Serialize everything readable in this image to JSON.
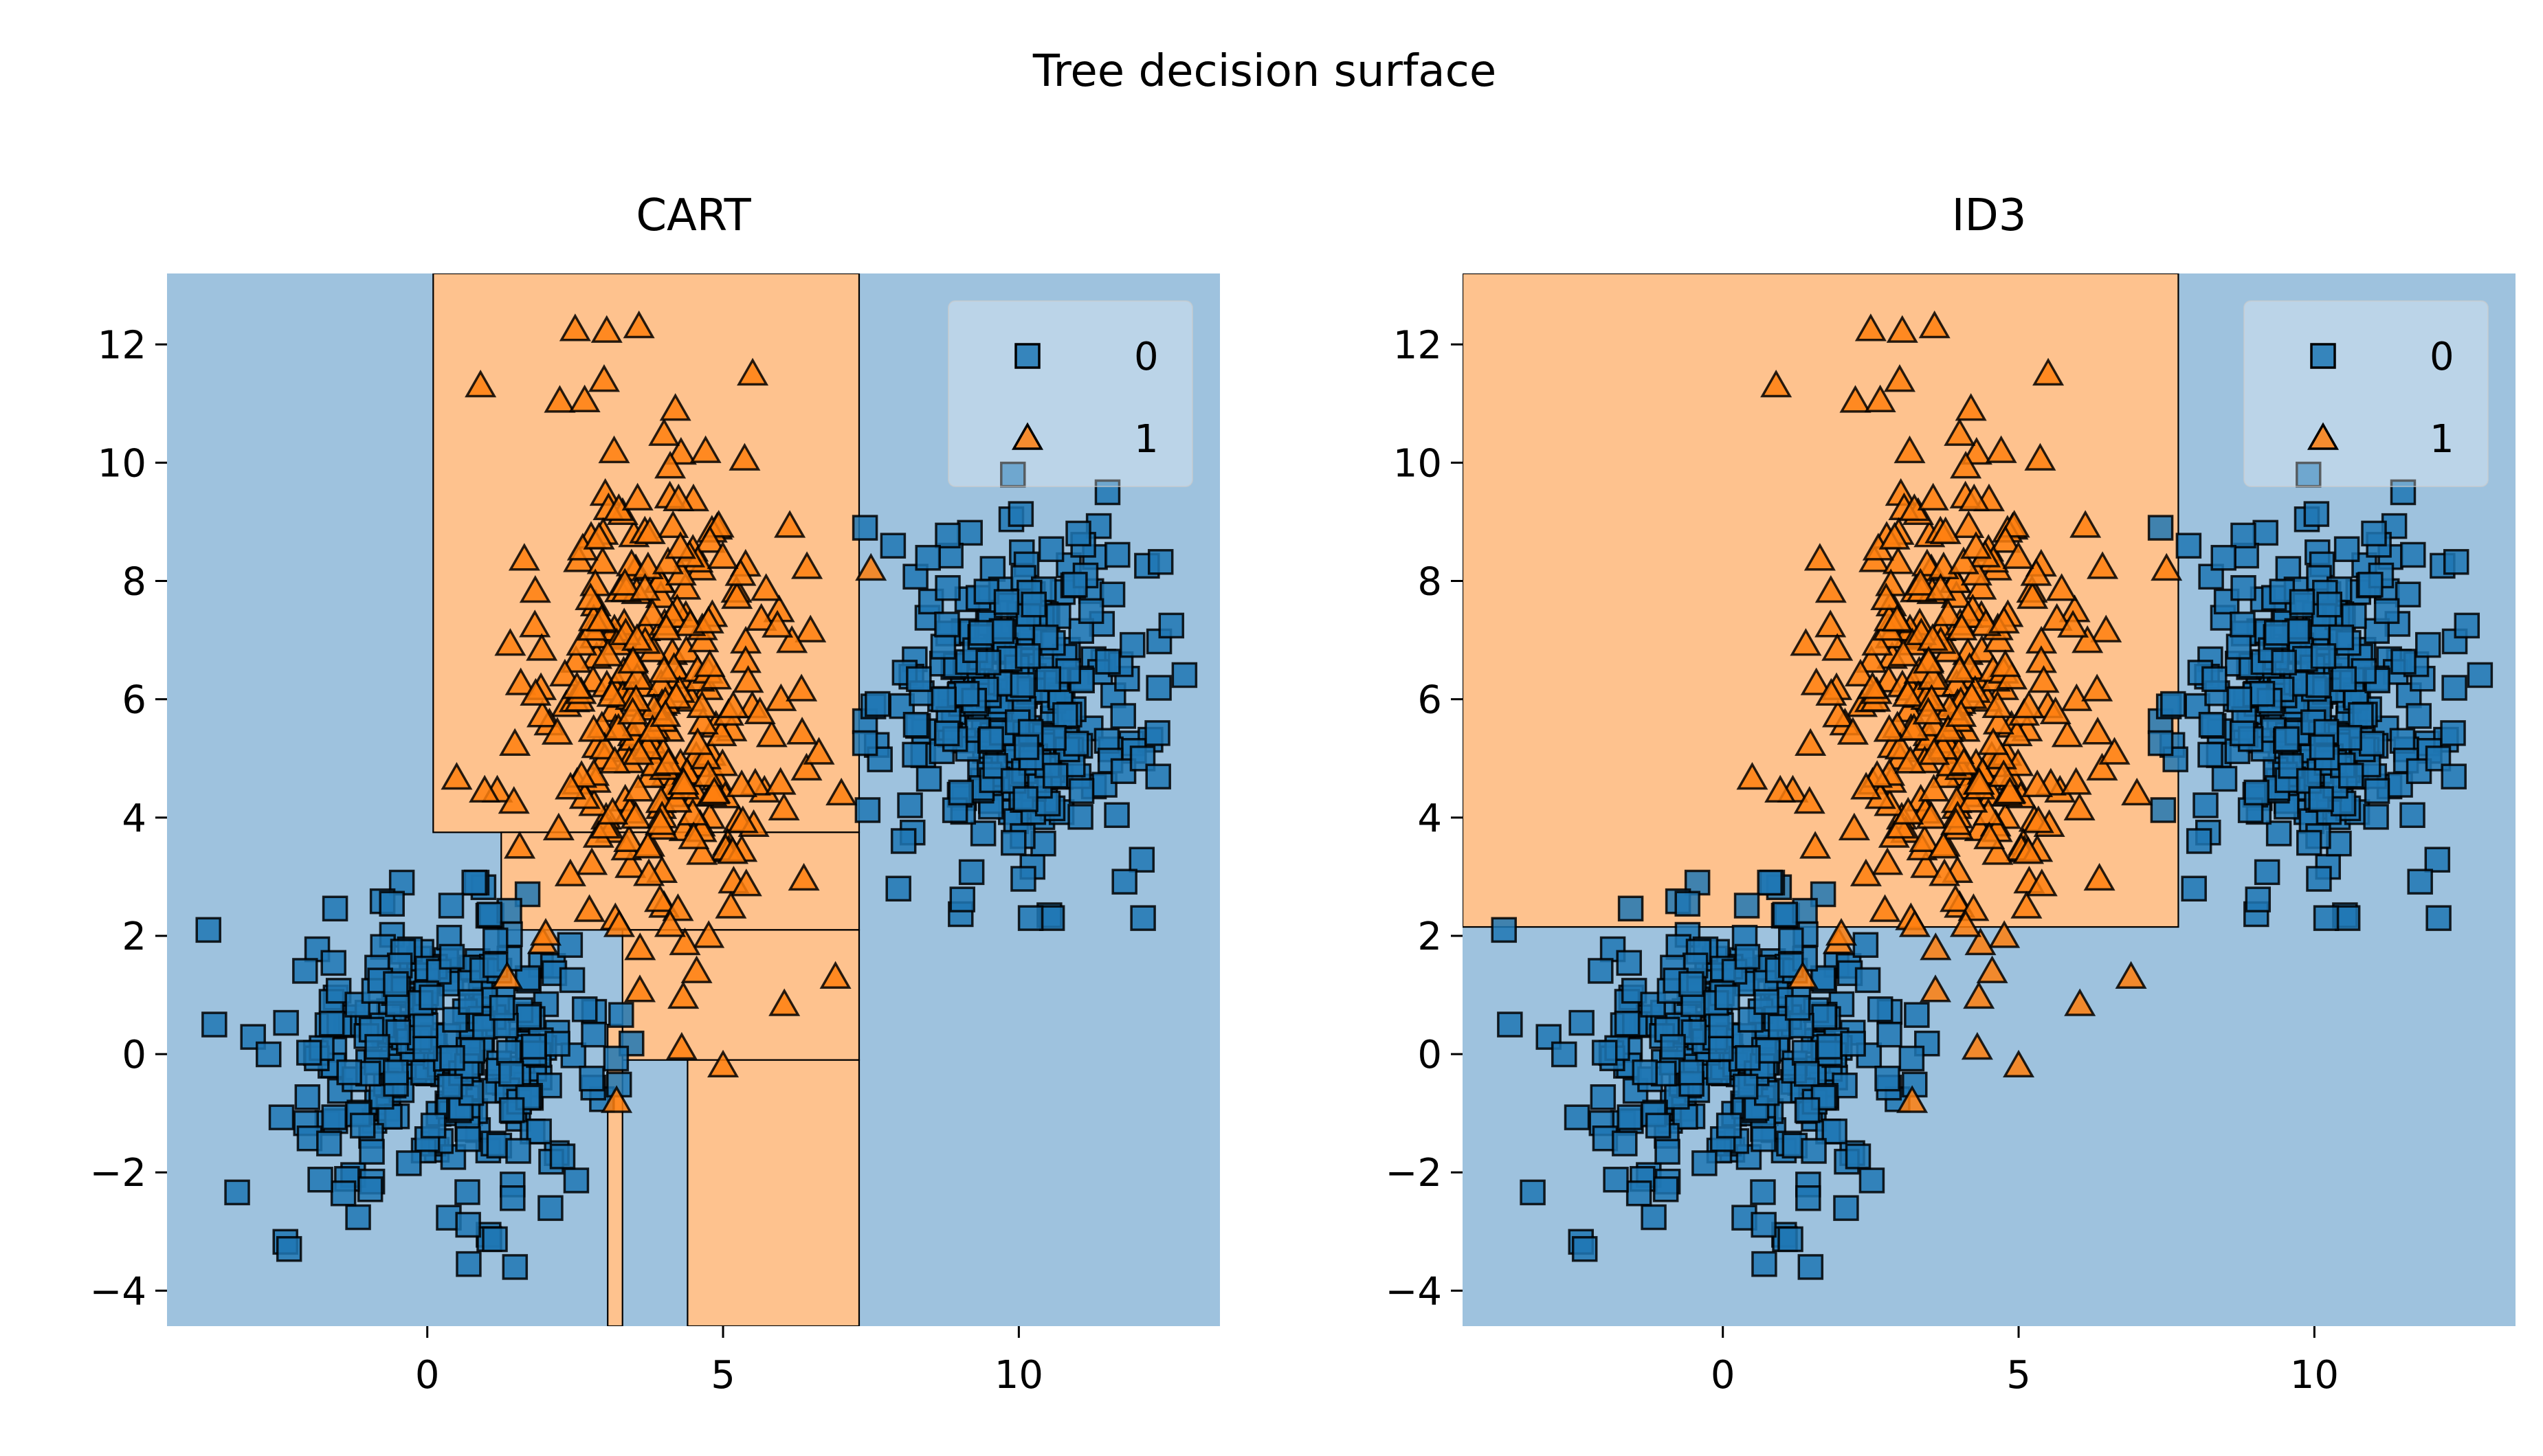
{
  "figure": {
    "suptitle": "Tree decision surface"
  },
  "chart_data": [
    {
      "type": "scatter",
      "title": "CART",
      "xlabel": "",
      "ylabel": "",
      "xlim": [
        -4.4,
        13.4
      ],
      "ylim": [
        -4.6,
        13.2
      ],
      "xticks": [
        0,
        5,
        10
      ],
      "yticks": [
        -4,
        -2,
        0,
        2,
        4,
        6,
        8,
        10,
        12
      ],
      "grid": false,
      "legend": {
        "placement": "top-right",
        "entries": [
          "0",
          "1"
        ]
      },
      "decision_regions": [
        {
          "class": "1",
          "x0": 0.1,
          "x1": 7.3,
          "y0": 3.75,
          "y1": 13.2
        },
        {
          "class": "1",
          "x0": 1.25,
          "x1": 7.3,
          "y0": 2.1,
          "y1": 3.75
        },
        {
          "class": "1",
          "x0": 3.3,
          "x1": 7.3,
          "y0": -0.1,
          "y1": 2.1
        },
        {
          "class": "1",
          "x0": 4.4,
          "x1": 7.3,
          "y0": -4.6,
          "y1": -0.1
        },
        {
          "class": "1",
          "x0": 3.05,
          "x1": 3.3,
          "y0": -4.6,
          "y1": 0.5
        }
      ],
      "series": [
        {
          "name": "0",
          "marker": "square",
          "color": "#1f77b4",
          "region_color": "#9ec2de",
          "clusters": [
            {
              "n": 300,
              "cx": 0.3,
              "cy": 0.0,
              "sx": 1.35,
              "sy": 1.15,
              "xmin": -3.8,
              "xmax": 3.6,
              "ymin": -3.6,
              "ymax": 2.9
            },
            {
              "n": 300,
              "cx": 10.0,
              "cy": 6.0,
              "sx": 1.1,
              "sy": 1.4,
              "xmin": 7.4,
              "xmax": 12.8,
              "ymin": 2.3,
              "ymax": 9.8
            }
          ],
          "extra": [
            {
              "x": -3.7,
              "y": 2.1
            },
            {
              "x": -3.6,
              "y": 0.5
            },
            {
              "x": 0.7,
              "y": -3.55
            },
            {
              "x": 10.2,
              "y": 2.3
            },
            {
              "x": 12.1,
              "y": 2.3
            },
            {
              "x": 9.9,
              "y": 9.8
            },
            {
              "x": 11.5,
              "y": 9.5
            },
            {
              "x": 7.4,
              "y": 8.9
            }
          ]
        },
        {
          "name": "1",
          "marker": "triangle",
          "color": "#ff7f0e",
          "region_color": "#fec28e",
          "clusters": [
            {
              "n": 300,
              "cx": 3.9,
              "cy": 6.0,
              "sx": 1.2,
              "sy": 2.2,
              "xmin": 0.3,
              "xmax": 7.0,
              "ymin": -0.9,
              "ymax": 12.3
            }
          ],
          "extra": [
            {
              "x": 2.5,
              "y": 12.25
            },
            {
              "x": 0.9,
              "y": 11.3
            },
            {
              "x": 5.5,
              "y": 11.5
            },
            {
              "x": 5.0,
              "y": -0.2
            },
            {
              "x": 7.0,
              "y": 4.4
            },
            {
              "x": 6.9,
              "y": 1.3
            },
            {
              "x": 7.5,
              "y": 8.2
            },
            {
              "x": 3.2,
              "y": -0.8
            }
          ]
        }
      ]
    },
    {
      "type": "scatter",
      "title": "ID3",
      "xlabel": "",
      "ylabel": "",
      "xlim": [
        -4.4,
        13.4
      ],
      "ylim": [
        -4.6,
        13.2
      ],
      "xticks": [
        0,
        5,
        10
      ],
      "yticks": [
        -4,
        -2,
        0,
        2,
        4,
        6,
        8,
        10,
        12
      ],
      "grid": false,
      "legend": {
        "placement": "top-right",
        "entries": [
          "0",
          "1"
        ]
      },
      "decision_regions": [
        {
          "class": "1",
          "x0": -4.4,
          "x1": 7.7,
          "y0": 2.15,
          "y1": 13.2
        }
      ],
      "series": [
        {
          "name": "0",
          "marker": "square",
          "color": "#1f77b4",
          "region_color": "#9ec2de",
          "clusters": [
            {
              "n": 300,
              "cx": 0.3,
              "cy": 0.0,
              "sx": 1.35,
              "sy": 1.15,
              "xmin": -3.8,
              "xmax": 3.6,
              "ymin": -3.6,
              "ymax": 2.9
            },
            {
              "n": 300,
              "cx": 10.0,
              "cy": 6.0,
              "sx": 1.1,
              "sy": 1.4,
              "xmin": 7.4,
              "xmax": 12.8,
              "ymin": 2.3,
              "ymax": 9.8
            }
          ],
          "extra": [
            {
              "x": -3.7,
              "y": 2.1
            },
            {
              "x": -3.6,
              "y": 0.5
            },
            {
              "x": 0.7,
              "y": -3.55
            },
            {
              "x": 10.2,
              "y": 2.3
            },
            {
              "x": 12.1,
              "y": 2.3
            },
            {
              "x": 9.9,
              "y": 9.8
            },
            {
              "x": 11.5,
              "y": 9.5
            },
            {
              "x": 7.4,
              "y": 8.9
            }
          ]
        },
        {
          "name": "1",
          "marker": "triangle",
          "color": "#ff7f0e",
          "region_color": "#fec28e",
          "clusters": [
            {
              "n": 300,
              "cx": 3.9,
              "cy": 6.0,
              "sx": 1.2,
              "sy": 2.2,
              "xmin": 0.3,
              "xmax": 7.0,
              "ymin": -0.9,
              "ymax": 12.3
            }
          ],
          "extra": [
            {
              "x": 2.5,
              "y": 12.25
            },
            {
              "x": 0.9,
              "y": 11.3
            },
            {
              "x": 5.5,
              "y": 11.5
            },
            {
              "x": 5.0,
              "y": -0.2
            },
            {
              "x": 7.0,
              "y": 4.4
            },
            {
              "x": 6.9,
              "y": 1.3
            },
            {
              "x": 7.5,
              "y": 8.2
            },
            {
              "x": 3.2,
              "y": -0.8
            }
          ]
        }
      ]
    }
  ]
}
